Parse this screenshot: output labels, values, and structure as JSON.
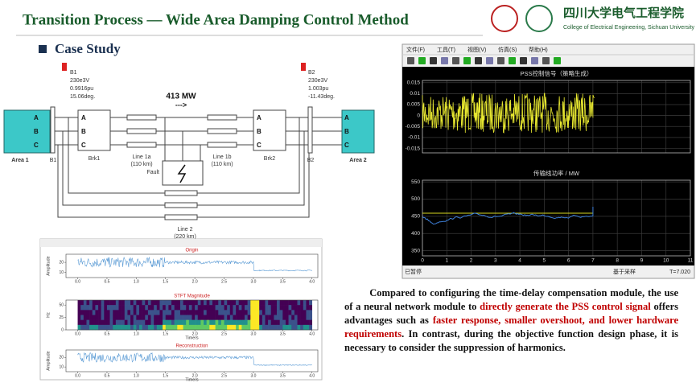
{
  "header": {
    "title": "Transition Process — Wide Area Damping Control Method",
    "logo_cn": "四川大学电气工程学院",
    "logo_en": "College of Electrical Engineering, Sichuan University"
  },
  "section": "Case Study",
  "circuit": {
    "area1": "Area 1",
    "area2": "Area 2",
    "bus1": {
      "name": "B1",
      "voltage": "230e3V",
      "magnitude": "0.9916pu",
      "angle": "15.06deg."
    },
    "bus2": {
      "name": "B2",
      "voltage": "230e3V",
      "magnitude": "1.003pu",
      "angle": "-11.43deg."
    },
    "bus1_label": "B1",
    "bus2_label": "B2",
    "phases": [
      "A",
      "B",
      "C"
    ],
    "breaker1": "Brk1",
    "breaker2": "Brk2",
    "flow": "413 MW",
    "flow_arrow": "--->",
    "line1a": [
      "Line 1a",
      "(110 km)"
    ],
    "line1b": [
      "Line 1b",
      "(110 km)"
    ],
    "fault": "Fault",
    "line2": [
      "Line 2",
      "(220 km)"
    ]
  },
  "scope": {
    "menu": [
      "文件(F)",
      "工具(T)",
      "视图(V)",
      "仿真(S)",
      "帮助(H)"
    ],
    "status": [
      "已暂停",
      "基于采样",
      "T=7.020"
    ],
    "plot1": {
      "title": "PSS控制信号（策略生成）",
      "ylim": [
        -0.017,
        0.016
      ],
      "yticks": [
        -0.015,
        -0.01,
        -0.005,
        0,
        0.005,
        0.01,
        0.015
      ]
    },
    "plot2": {
      "title": "传输线功率 / MW",
      "ylim": [
        335,
        555
      ],
      "yticks": [
        350,
        400,
        450,
        500,
        550
      ],
      "xlim": [
        0,
        11
      ],
      "xticks": [
        0,
        1,
        2,
        3,
        4,
        5,
        6,
        7,
        8,
        9,
        10,
        11
      ]
    }
  },
  "stft": {
    "panels": [
      {
        "title": "Origin",
        "ylabel": "Amplitude",
        "ylim": [
          5,
          28
        ],
        "yticks": [
          10,
          20
        ]
      },
      {
        "title": "STFT Magnitude",
        "ylabel": "Hz",
        "ylim": [
          0,
          60
        ],
        "yticks": [
          0,
          25,
          50
        ]
      },
      {
        "title": "Reconstruction",
        "ylabel": "Amplitude",
        "ylim": [
          5,
          28
        ],
        "yticks": [
          10,
          20
        ]
      }
    ],
    "xlabel": "Time/s",
    "xlim": [
      -0.2,
      4.1
    ],
    "xticks": [
      {
        "value": 0,
        "label": "0.0"
      },
      {
        "value": 0.5,
        "label": "0.5"
      },
      {
        "value": 1,
        "label": "1.0"
      },
      {
        "value": 1.5,
        "label": "1.5"
      },
      {
        "value": 2,
        "label": "2.0"
      },
      {
        "value": 2.5,
        "label": "2.5"
      },
      {
        "value": 3,
        "label": "3.0"
      },
      {
        "value": 3.5,
        "label": "3.5"
      },
      {
        "value": 4,
        "label": "4.0"
      }
    ]
  },
  "paragraph": [
    {
      "text": "Compared to configuring the time-delay compensation module, the use of a neural network module to ",
      "color": "#111111"
    },
    {
      "text": "directly generate the PSS control signal",
      "color": "#c00000"
    },
    {
      "text": " offers advantages such as ",
      "color": "#111111"
    },
    {
      "text": "faster response, smaller overshoot, and lower hardware requirements",
      "color": "#c00000"
    },
    {
      "text": ". In contrast, during the objective function design phase, it is necessary to consider the suppression of harmonics.",
      "color": "#111111"
    }
  ]
}
